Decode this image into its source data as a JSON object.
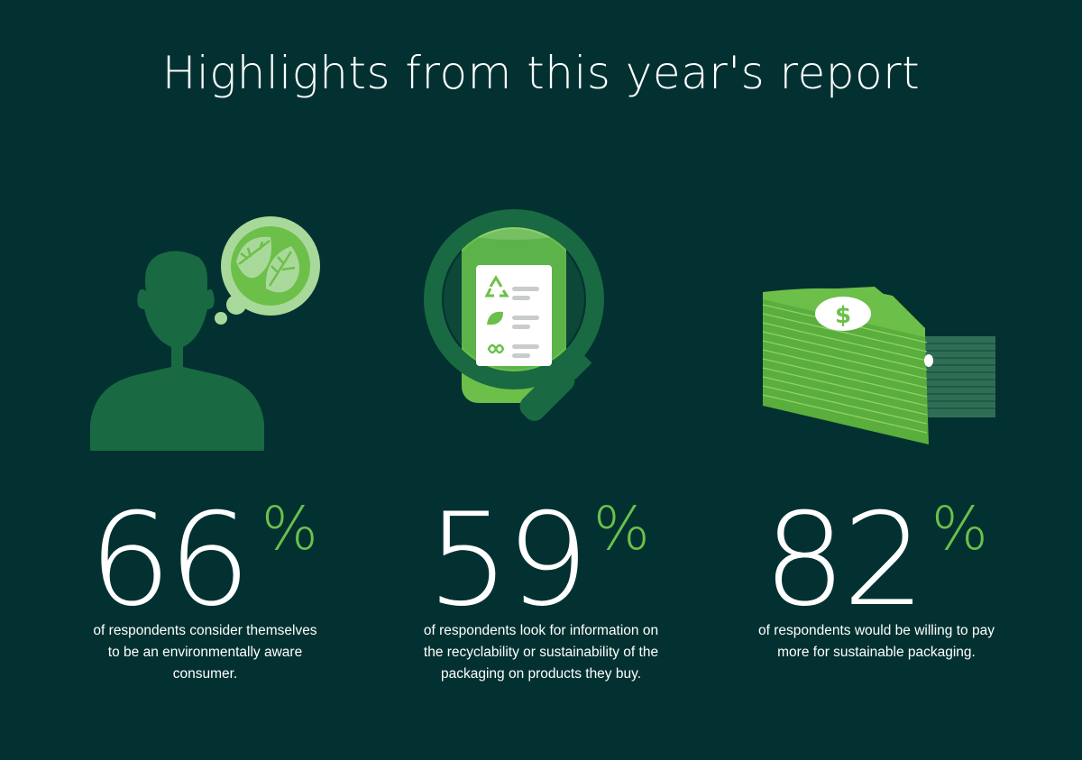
{
  "title": "Highlights from this year's report",
  "colors": {
    "background": "#033131",
    "accent": "#6cc04a",
    "text": "#ffffff"
  },
  "stats": [
    {
      "icon": "person-leaf-thought-icon",
      "value": "66",
      "unit": "%",
      "description": "of respondents consider themselves to be an environmentally aware consumer."
    },
    {
      "icon": "magnifier-recycle-label-icon",
      "value": "59",
      "unit": "%",
      "description": "of respondents look for information on the recyclability or sustainability of the packaging on products they buy."
    },
    {
      "icon": "money-stack-icon",
      "value": "82",
      "unit": "%",
      "description": "of respondents would be willing to pay more for sustainable packaging."
    }
  ]
}
